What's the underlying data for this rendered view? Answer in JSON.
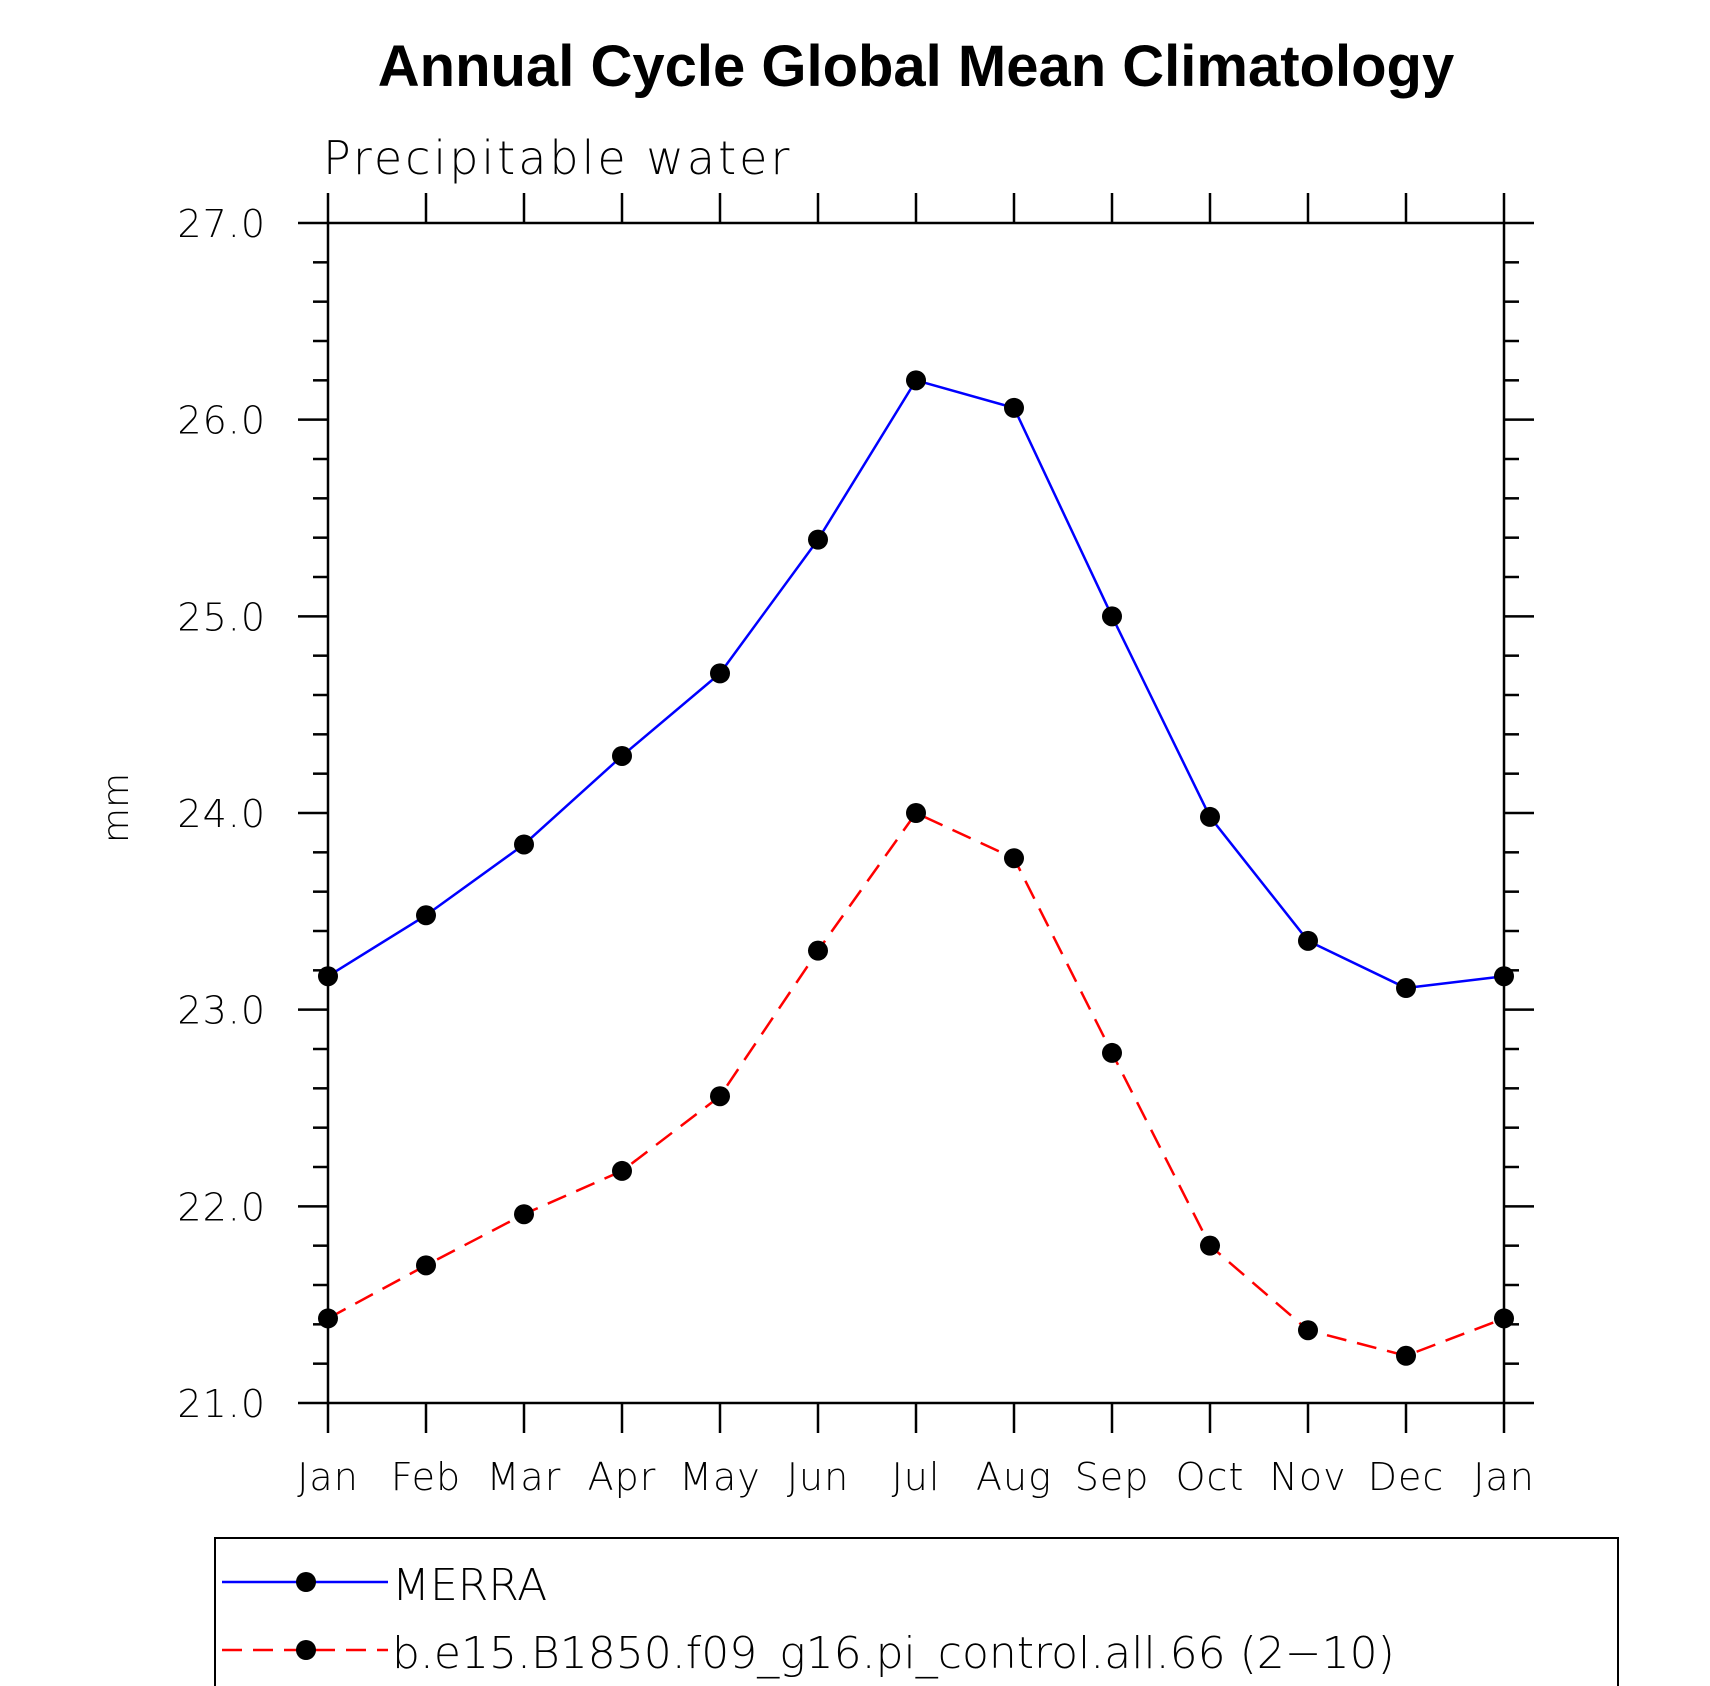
{
  "chart_data": {
    "type": "line",
    "title": "Annual Cycle Global Mean Climatology",
    "subtitle": "Precipitable water",
    "xlabel": "",
    "ylabel": "mm",
    "categories": [
      "Jan",
      "Feb",
      "Mar",
      "Apr",
      "May",
      "Jun",
      "Jul",
      "Aug",
      "Sep",
      "Oct",
      "Nov",
      "Dec",
      "Jan"
    ],
    "yticks": [
      "21.0",
      "22.0",
      "23.0",
      "24.0",
      "25.0",
      "26.0",
      "27.0"
    ],
    "ylim": [
      21.0,
      27.0
    ],
    "grid": false,
    "legend_position": "bottom",
    "series": [
      {
        "name": "MERRA",
        "color": "#0000ff",
        "line_style": "solid",
        "marker": "filled-circle",
        "values": [
          23.17,
          23.48,
          23.84,
          24.29,
          24.71,
          25.39,
          26.2,
          26.06,
          25.0,
          23.98,
          23.35,
          23.11,
          23.17
        ]
      },
      {
        "name": "b.e15.B1850.f09_g16.pi_control.all.66 (2−10)",
        "color": "#ff0000",
        "line_style": "dashed",
        "marker": "filled-circle",
        "values": [
          21.43,
          21.7,
          21.96,
          22.18,
          22.56,
          23.3,
          24.0,
          23.77,
          22.78,
          21.8,
          21.37,
          21.24,
          21.43
        ]
      }
    ]
  }
}
